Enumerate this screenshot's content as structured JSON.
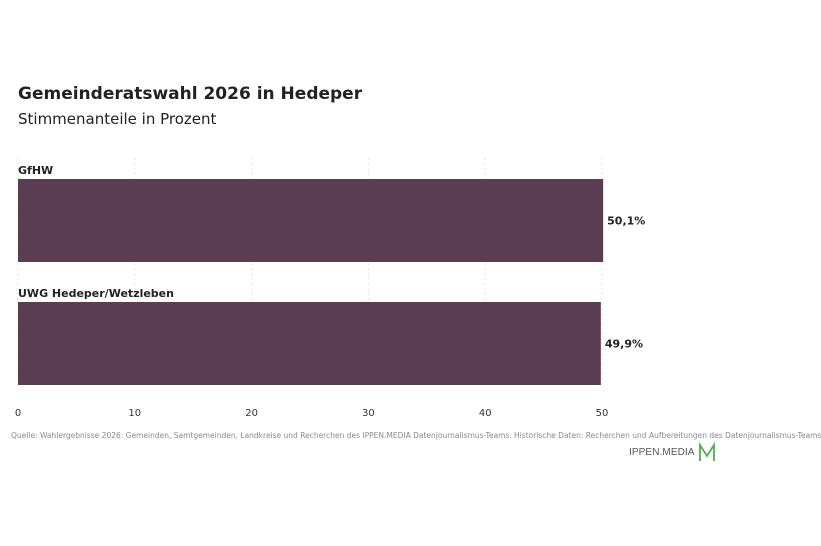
{
  "header": {
    "title": "Gemeinderatswahl 2026 in Hedeper",
    "subtitle": "Stimmenanteile in Prozent"
  },
  "footer": {
    "source": "Quelle: Wahlergebnisse 2026: Gemeinden, Samtgemeinden, Landkreise und Recherchen des IPPEN.MEDIA Datenjournalismus-Teams. Historische Daten: Recherchen und Aufbereitungen des Datenjournalismus-Teams",
    "logo_text": "IPPEN.MEDIA"
  },
  "colors": {
    "bar": "#5a3d50",
    "logo_mark": "#4caf50"
  },
  "chart_data": {
    "type": "bar",
    "orientation": "horizontal",
    "categories": [
      "GfHW",
      "UWG Hedeper/Wetzleben"
    ],
    "values": [
      50.1,
      49.9
    ],
    "value_labels": [
      "50,1%",
      "49,9%"
    ],
    "title": "Gemeinderatswahl 2026 in Hedeper",
    "subtitle": "Stimmenanteile in Prozent",
    "xlabel": "",
    "ylabel": "",
    "xlim": [
      0,
      50
    ],
    "xticks": [
      0,
      10,
      20,
      30,
      40,
      50
    ],
    "grid": true
  }
}
